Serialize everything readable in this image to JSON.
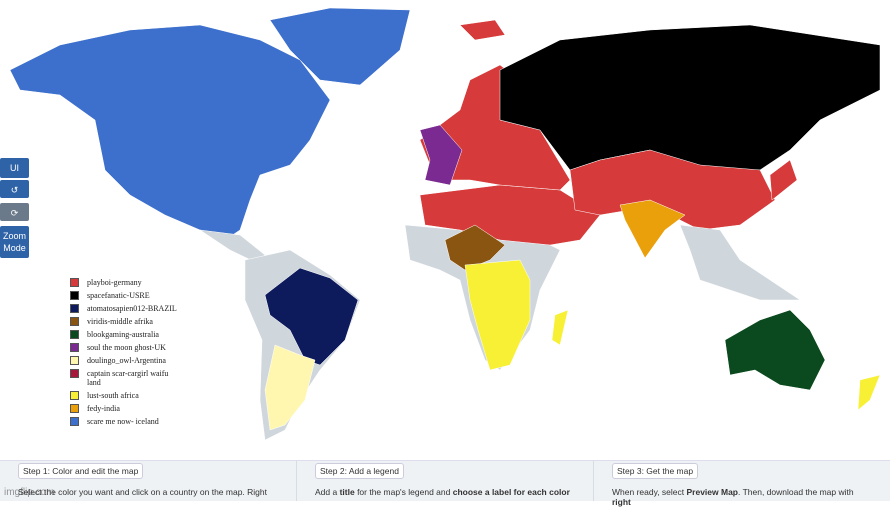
{
  "controls": {
    "ui": "UI",
    "zoom": "Zoom Mode"
  },
  "legend": [
    {
      "label": "playboi-germany",
      "color": "#d63a3a"
    },
    {
      "label": "spacefanatic-USRE",
      "color": "#000000"
    },
    {
      "label": "atomatosapien012-BRAZIL",
      "color": "#0d1b5c"
    },
    {
      "label": "viridis-middle afrika",
      "color": "#8a5510"
    },
    {
      "label": "blookgaming-australia",
      "color": "#0b4a1e"
    },
    {
      "label": "soul the moon ghost-UK",
      "color": "#7a2a90"
    },
    {
      "label": "doulingo_owl-Argentina",
      "color": "#fff7b0"
    },
    {
      "label": "captain scar-cargirl waifu land",
      "color": "#a8183c"
    },
    {
      "label": "lust-south africa",
      "color": "#f7f034"
    },
    {
      "label": "fedy-india",
      "color": "#eaa00a"
    },
    {
      "label": "scare me now- iceland",
      "color": "#3d6fcc"
    }
  ],
  "steps": [
    {
      "title": "Step 1: Color and edit the map",
      "body": [
        "Select the color you want and click on a country on the map. Right"
      ]
    },
    {
      "title": "Step 2: Add a legend",
      "body": [
        "Add a ",
        "title",
        " for the map's legend and ",
        "choose a label for each color"
      ]
    },
    {
      "title": "Step 3: Get the map",
      "body": [
        "When ready, select ",
        "Preview Map",
        ". Then, download the map with ",
        "right"
      ]
    }
  ],
  "watermark": "imgflip.com"
}
